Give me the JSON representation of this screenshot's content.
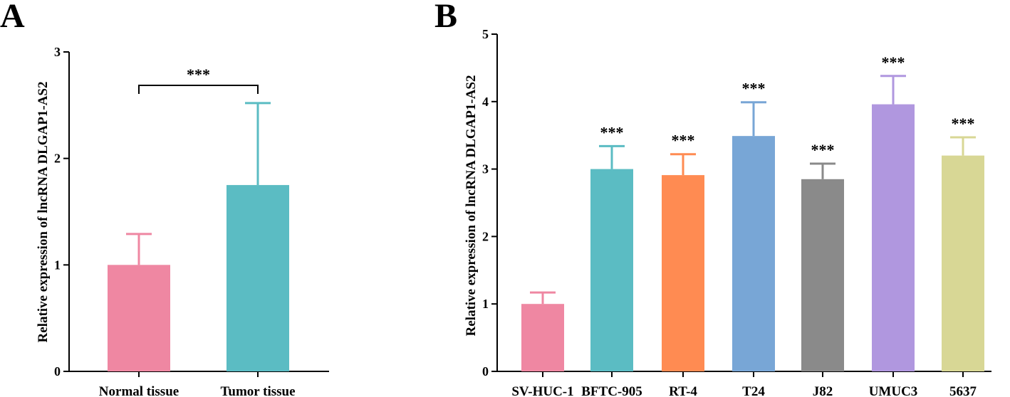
{
  "panels": [
    {
      "letter": "A",
      "chart_data": {
        "type": "bar",
        "ylabel": "Relative expression of lncRNA DLGAP1-AS2",
        "xlabel": "",
        "ylim": [
          0,
          3
        ],
        "yticks": [
          "0",
          "1",
          "2",
          "3"
        ],
        "categories": [
          "Normal tissue",
          "Tumor tissue"
        ],
        "values": [
          1.0,
          1.75
        ],
        "errors": [
          0.29,
          0.77
        ],
        "colors": [
          "#EF87A2",
          "#5BBCC3"
        ],
        "significance": {
          "label": "***",
          "type": "bracket",
          "between": [
            0,
            1
          ]
        }
      }
    },
    {
      "letter": "B",
      "chart_data": {
        "type": "bar",
        "ylabel": "Relative expression of lncRNA DLGAP1-AS2",
        "xlabel": "",
        "ylim": [
          0,
          5
        ],
        "yticks": [
          "0",
          "1",
          "2",
          "3",
          "4",
          "5"
        ],
        "categories": [
          "SV-HUC-1",
          "BFTC-905",
          "RT-4",
          "T24",
          "J82",
          "UMUC3",
          "5637"
        ],
        "values": [
          1.0,
          3.0,
          2.91,
          3.49,
          2.85,
          3.96,
          3.2
        ],
        "errors": [
          0.17,
          0.34,
          0.31,
          0.5,
          0.23,
          0.42,
          0.27
        ],
        "colors": [
          "#EF87A2",
          "#5BBCC3",
          "#FF8B52",
          "#78A6D6",
          "#8A8A8A",
          "#B097DF",
          "#D8D795"
        ],
        "significance_labels": [
          "",
          "***",
          "***",
          "***",
          "***",
          "***",
          "***"
        ]
      }
    }
  ]
}
